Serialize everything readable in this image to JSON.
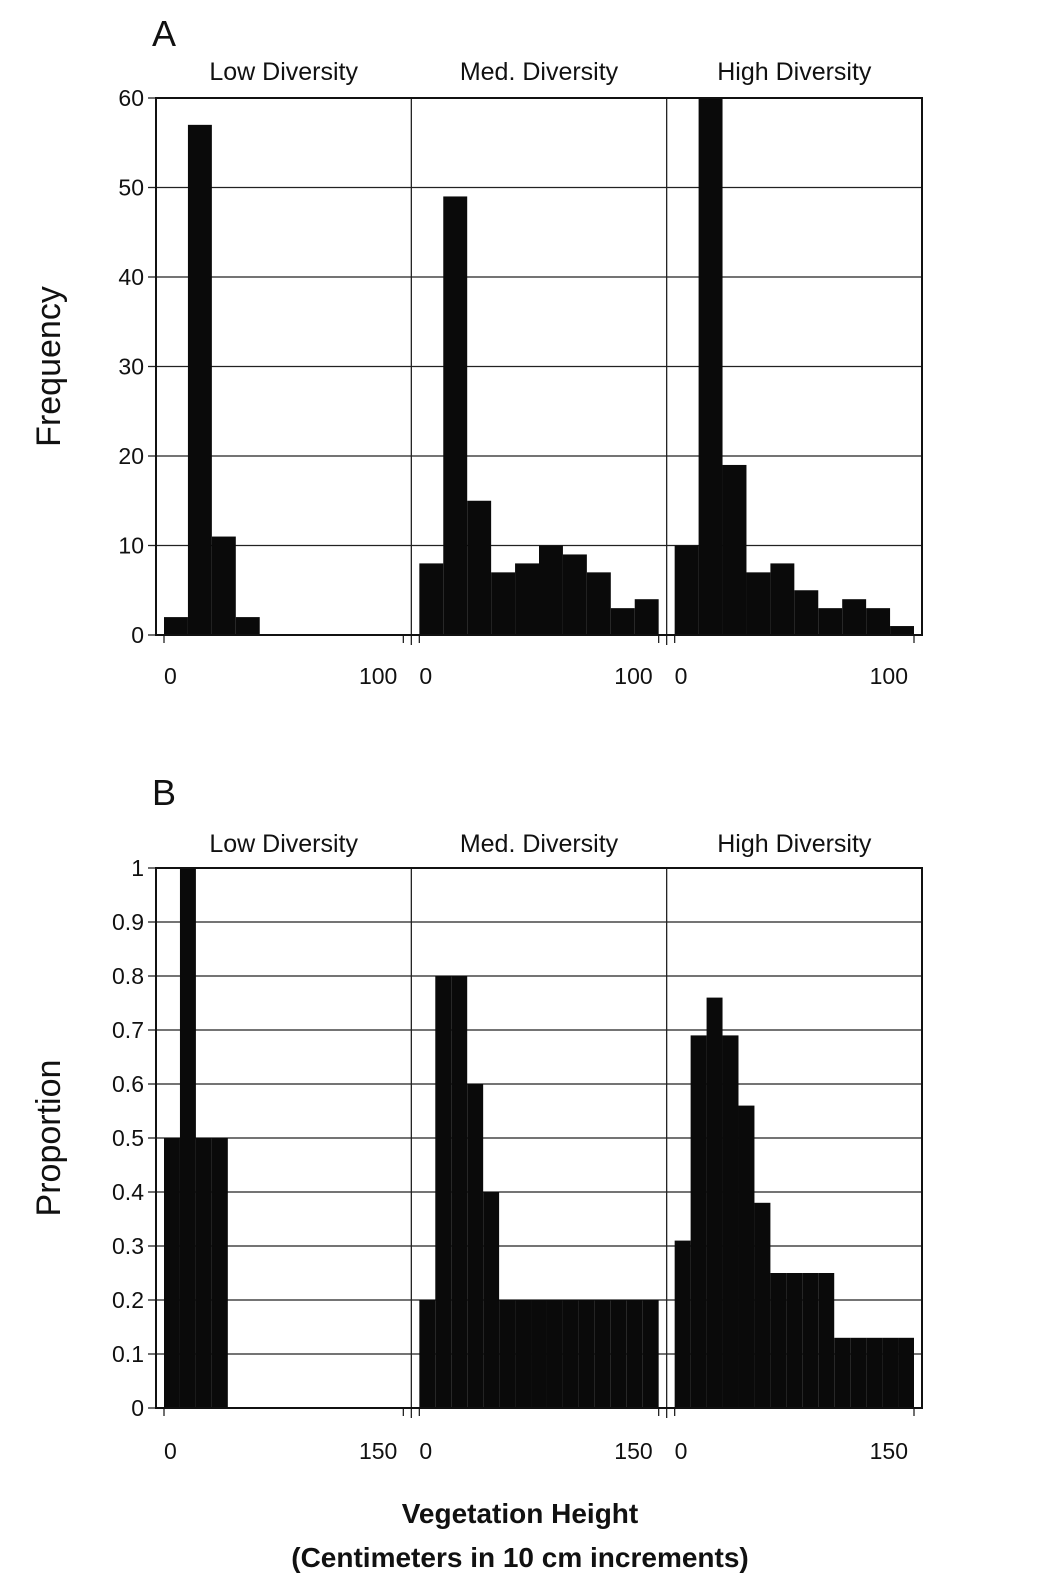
{
  "x_axis_label_line1": "Vegetation Height",
  "x_axis_label_line2": "(Centimeters in 10 cm increments)",
  "chart_data": [
    {
      "letter": "A",
      "type": "bar",
      "ylabel": "Frequency",
      "ylim": [
        0,
        60
      ],
      "yticks": [
        0,
        10,
        20,
        30,
        40,
        50,
        60
      ],
      "ytick_labels": [
        "0",
        "10",
        "20",
        "30",
        "40",
        "50",
        "60"
      ],
      "grid": true,
      "subplots": [
        {
          "title": "Low Diversity",
          "xlim": [
            0,
            100
          ],
          "xtick_labels": [
            "0",
            "100"
          ],
          "bar_width": 10,
          "x": [
            0,
            10,
            20,
            30,
            40,
            50,
            60,
            70,
            80,
            90
          ],
          "values": [
            2,
            57,
            11,
            2,
            0,
            0,
            0,
            0,
            0,
            0
          ]
        },
        {
          "title": "Med. Diversity",
          "xlim": [
            0,
            100
          ],
          "xtick_labels": [
            "0",
            "100"
          ],
          "bar_width": 10,
          "x": [
            0,
            10,
            20,
            30,
            40,
            50,
            60,
            70,
            80,
            90
          ],
          "values": [
            8,
            49,
            15,
            7,
            8,
            10,
            9,
            7,
            3,
            4
          ]
        },
        {
          "title": "High Diversity",
          "xlim": [
            0,
            100
          ],
          "xtick_labels": [
            "0",
            "100"
          ],
          "bar_width": 10,
          "x": [
            0,
            10,
            20,
            30,
            40,
            50,
            60,
            70,
            80,
            90
          ],
          "values": [
            10,
            60,
            19,
            7,
            8,
            5,
            3,
            4,
            3,
            1
          ]
        }
      ]
    },
    {
      "letter": "B",
      "type": "bar",
      "ylabel": "Proportion",
      "ylim": [
        0,
        1
      ],
      "yticks": [
        0,
        0.1,
        0.2,
        0.3,
        0.4,
        0.5,
        0.6,
        0.7,
        0.8,
        0.9,
        1
      ],
      "ytick_labels": [
        "0",
        "0.1",
        "0.2",
        "0.3",
        "0.4",
        "0.5",
        "0.6",
        "0.7",
        "0.8",
        "0.9",
        "1"
      ],
      "grid": true,
      "subplots": [
        {
          "title": "Low Diversity",
          "xlim": [
            0,
            150
          ],
          "xtick_labels": [
            "0",
            "150"
          ],
          "bar_width": 10,
          "x": [
            0,
            10,
            20,
            30,
            40,
            50,
            60,
            70,
            80,
            90,
            100,
            110,
            120,
            130,
            140
          ],
          "values": [
            0.5,
            1,
            0.5,
            0.5,
            0,
            0,
            0,
            0,
            0,
            0,
            0,
            0,
            0,
            0,
            0
          ]
        },
        {
          "title": "Med. Diversity",
          "xlim": [
            0,
            150
          ],
          "xtick_labels": [
            "0",
            "150"
          ],
          "bar_width": 10,
          "x": [
            0,
            10,
            20,
            30,
            40,
            50,
            60,
            70,
            80,
            90,
            100,
            110,
            120,
            130,
            140
          ],
          "values": [
            0.2,
            0.8,
            0.8,
            0.6,
            0.4,
            0.2,
            0.2,
            0.2,
            0.2,
            0.2,
            0.2,
            0.2,
            0.2,
            0.2,
            0.2
          ]
        },
        {
          "title": "High Diversity",
          "xlim": [
            0,
            150
          ],
          "xtick_labels": [
            "0",
            "150"
          ],
          "bar_width": 10,
          "x": [
            0,
            10,
            20,
            30,
            40,
            50,
            60,
            70,
            80,
            90,
            100,
            110,
            120,
            130,
            140
          ],
          "values": [
            0.31,
            0.69,
            0.76,
            0.69,
            0.56,
            0.38,
            0.25,
            0.25,
            0.25,
            0.25,
            0.13,
            0.13,
            0.13,
            0.13,
            0.13
          ]
        }
      ]
    }
  ]
}
